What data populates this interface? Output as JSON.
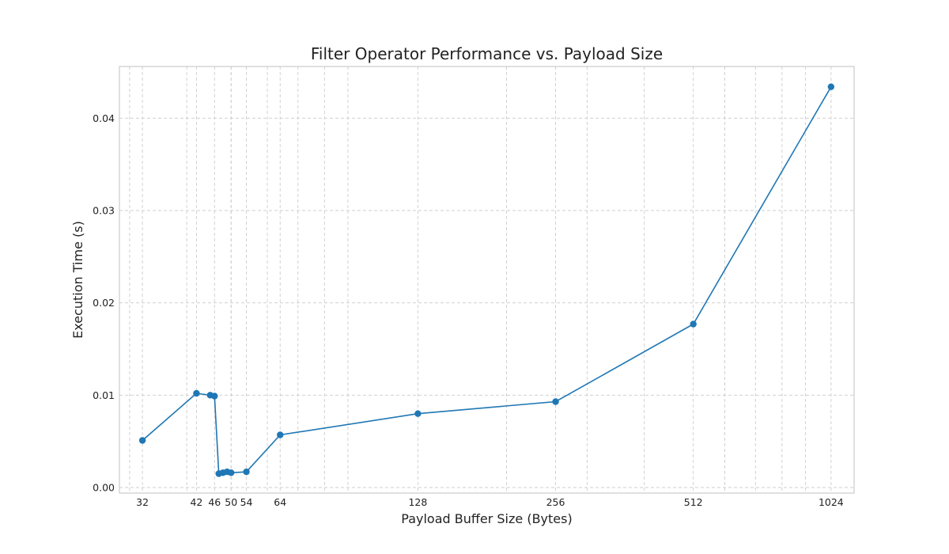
{
  "chart_data": {
    "type": "line",
    "title": "Filter Operator Performance vs. Payload Size",
    "xlabel": "Payload Buffer Size (Bytes)",
    "ylabel": "Execution Time (s)",
    "x_scale": "log2",
    "xlim": [
      28.5,
      1150
    ],
    "ylim": [
      -0.0006,
      0.0456
    ],
    "x_ticks": [
      32,
      42,
      46,
      50,
      54,
      64,
      128,
      256,
      512,
      1024
    ],
    "x_tick_labels": [
      "32",
      "42",
      "46",
      "50",
      "54",
      "64",
      "128",
      "256",
      "512",
      "1024"
    ],
    "y_ticks": [
      0.0,
      0.01,
      0.02,
      0.03,
      0.04
    ],
    "y_tick_labels": [
      "0.00",
      "0.01",
      "0.02",
      "0.03",
      "0.04"
    ],
    "x_minor_grid": [
      30,
      40,
      50,
      60,
      70,
      80,
      90,
      200,
      300,
      400,
      600,
      700,
      800,
      900
    ],
    "grid": true,
    "grid_style": "dashed",
    "line_color": "#1f77b4",
    "marker": "circle",
    "series": [
      {
        "x": [
          32,
          42,
          45,
          46,
          47,
          48,
          49,
          50,
          54,
          64,
          128,
          256,
          512,
          1024
        ],
        "y": [
          0.0051,
          0.0102,
          0.01,
          0.0099,
          0.0015,
          0.0016,
          0.0017,
          0.0016,
          0.0017,
          0.0057,
          0.008,
          0.0093,
          0.0177,
          0.0434
        ]
      }
    ]
  }
}
